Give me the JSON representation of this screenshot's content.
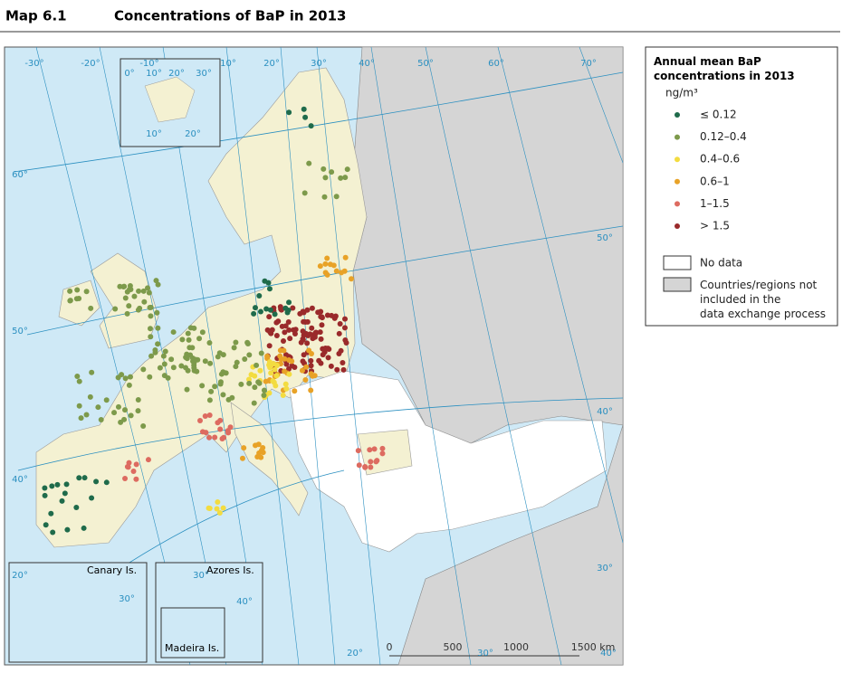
{
  "header": {
    "number": "Map 6.1",
    "title": "Concentrations of BaP in 2013"
  },
  "legend": {
    "title": "Annual mean BaP concentrations in 2013",
    "unit": "ng/m³",
    "classes": [
      {
        "label": "≤ 0.12",
        "color": "#1f6b4b"
      },
      {
        "label": "0.12–0.4",
        "color": "#7d9a4b"
      },
      {
        "label": "0.4–0.6",
        "color": "#f3dc40"
      },
      {
        "label": "0.6–1",
        "color": "#e8a227"
      },
      {
        "label": "1–1.5",
        "color": "#dd6b60"
      },
      {
        "label": "> 1.5",
        "color": "#9a2a2b"
      }
    ],
    "no_data": "No data",
    "not_included": "Countries/regions not included in the data exchange process"
  },
  "insets": {
    "canary": "Canary Is.",
    "azores": "Azores Is.",
    "madeira": "Madeira Is."
  },
  "graticule": [
    "-30°",
    "-20°",
    "-10°",
    "10°",
    "20°",
    "30°",
    "40°",
    "50°",
    "60°",
    "70°",
    "60°",
    "50°",
    "50°",
    "40°",
    "40°",
    "30°"
  ],
  "svalbard_graticule": [
    "0°",
    "10°",
    "20°",
    "30°",
    "10°",
    "20°"
  ],
  "inset_graticule": [
    "20°",
    "30°",
    "30°",
    "40°",
    "20°",
    "30°",
    "40°"
  ],
  "scale": [
    "0",
    "500",
    "1000",
    "1500 km"
  ]
}
